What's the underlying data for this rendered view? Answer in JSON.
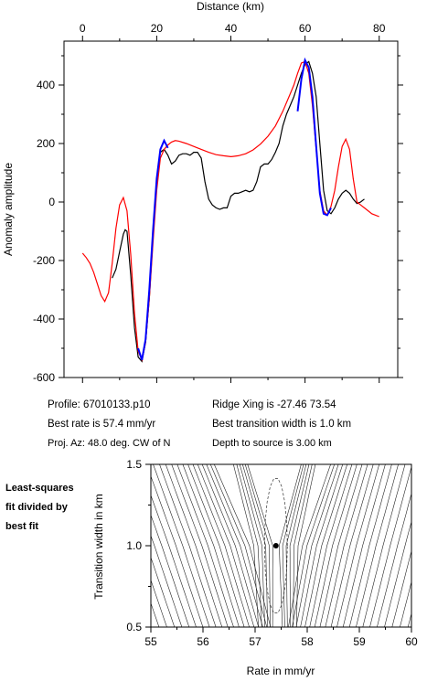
{
  "chart_data": [
    {
      "type": "line",
      "xlabel": "Distance (km)",
      "ylabel": "Anomaly amplitude",
      "xlim": [
        -5,
        85
      ],
      "ylim": [
        -600,
        550
      ],
      "xticks": [
        0,
        20,
        40,
        60,
        80
      ],
      "yticks": [
        -600,
        -400,
        -200,
        0,
        200,
        400
      ],
      "x_axis_position": "top",
      "series": [
        {
          "color": "#000000",
          "x": [
            8,
            9,
            10,
            11,
            11.5,
            12,
            13,
            14,
            15,
            16,
            17,
            18,
            19,
            20,
            21,
            22,
            23,
            24,
            25,
            26,
            27,
            28,
            29,
            30,
            31,
            32,
            33,
            34,
            35,
            36,
            37,
            38,
            39,
            40,
            41,
            42,
            43,
            44,
            45,
            46,
            47,
            48,
            49,
            50,
            51,
            52,
            53,
            54,
            55,
            56,
            57,
            58,
            59,
            60,
            61,
            62,
            63,
            64,
            65,
            66,
            67,
            68,
            69,
            70,
            71,
            72,
            73,
            74,
            75,
            76
          ],
          "y": [
            -260,
            -230,
            -170,
            -110,
            -95,
            -100,
            -250,
            -430,
            -530,
            -545,
            -480,
            -330,
            -120,
            60,
            170,
            180,
            160,
            130,
            140,
            160,
            165,
            165,
            160,
            170,
            170,
            150,
            70,
            10,
            -10,
            -20,
            -25,
            -20,
            -20,
            20,
            30,
            30,
            35,
            40,
            35,
            40,
            70,
            120,
            130,
            130,
            145,
            170,
            200,
            260,
            300,
            330,
            360,
            400,
            440,
            470,
            480,
            440,
            360,
            200,
            40,
            -30,
            -40,
            -20,
            10,
            30,
            40,
            30,
            10,
            -5,
            0,
            10
          ]
        },
        {
          "color": "#0000ff",
          "x": [
            15,
            16,
            17,
            18,
            19,
            20,
            21,
            22,
            23,
            58,
            59,
            60,
            61,
            62,
            63,
            64,
            65,
            66,
            67
          ],
          "y": [
            -500,
            -540,
            -470,
            -300,
            -100,
            80,
            180,
            210,
            185,
            310,
            420,
            485,
            460,
            360,
            190,
            30,
            -40,
            -45,
            -20
          ]
        },
        {
          "color": "#ff0000",
          "x": [
            0,
            1,
            2,
            3,
            4,
            5,
            6,
            7,
            8,
            9,
            10,
            11,
            12,
            13,
            14,
            15,
            16,
            17,
            18,
            19,
            20,
            21,
            22,
            23,
            24,
            25,
            26,
            28,
            30,
            32,
            34,
            36,
            38,
            40,
            42,
            44,
            46,
            48,
            50,
            52,
            54,
            56,
            57,
            58,
            59,
            60,
            61,
            62,
            63,
            64,
            65,
            66,
            67,
            68,
            69,
            70,
            71,
            72,
            73,
            74,
            75,
            76,
            77,
            78,
            79,
            80
          ],
          "y": [
            -175,
            -190,
            -210,
            -240,
            -280,
            -320,
            -340,
            -310,
            -210,
            -90,
            -10,
            15,
            -30,
            -180,
            -380,
            -510,
            -540,
            -480,
            -330,
            -140,
            40,
            150,
            180,
            195,
            205,
            210,
            208,
            200,
            190,
            180,
            170,
            162,
            158,
            155,
            158,
            165,
            178,
            198,
            225,
            260,
            310,
            370,
            400,
            440,
            475,
            480,
            440,
            330,
            180,
            40,
            -30,
            -45,
            -15,
            40,
            120,
            190,
            215,
            180,
            80,
            0,
            -10,
            -20,
            -30,
            -40,
            -45,
            -50
          ]
        }
      ]
    },
    {
      "type": "contour",
      "xlabel": "Rate in mm/yr",
      "ylabel": "Transition width in km",
      "xlim": [
        55,
        60
      ],
      "ylim": [
        0.5,
        1.5
      ],
      "xticks": [
        55,
        56,
        57,
        58,
        59,
        60
      ],
      "yticks": [
        0.5,
        1.0,
        1.5
      ],
      "best_fit_point": {
        "rate": 57.4,
        "width": 1.0
      }
    }
  ],
  "info": {
    "profile": "Profile: 67010133.p10",
    "ridge_xing": "Ridge Xing is -27.46 73.54",
    "best_rate": "Best rate is 57.4 mm/yr",
    "best_width": "Best transition width is 1.0 km",
    "proj_az": "Proj. Az: 48.0 deg. CW of N",
    "depth": "Depth to source is   3.00 km"
  },
  "side_note": [
    "Least-squares",
    "fit divided by",
    "best fit"
  ]
}
